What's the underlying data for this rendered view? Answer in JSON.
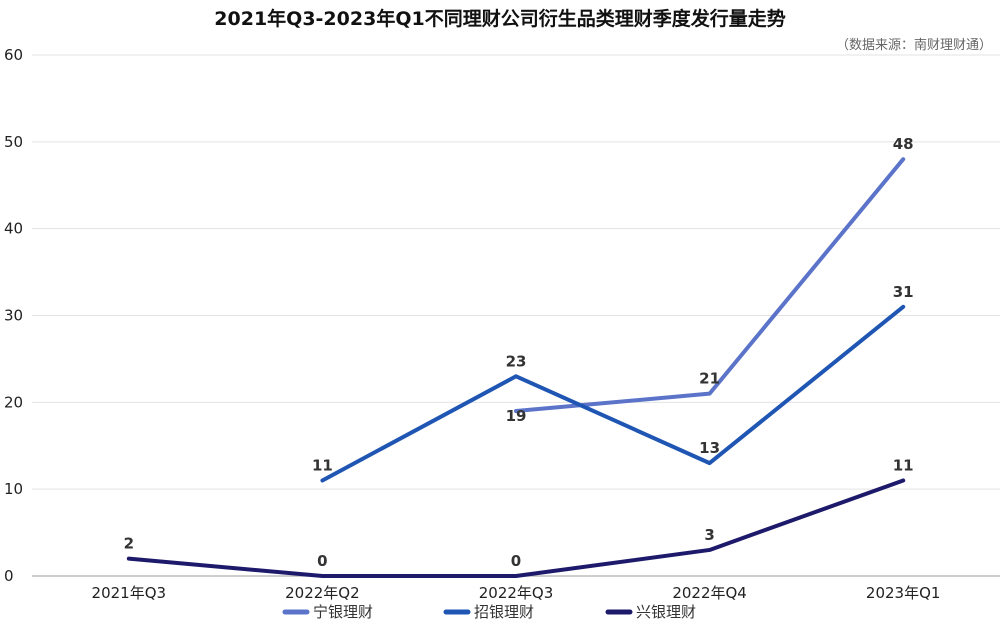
{
  "chart_data": {
    "type": "line",
    "title": "2021年Q3-2023年Q1不同理财公司衍生品类理财季度发行量走势",
    "source_note": "（数据来源：南财理财通）",
    "categories": [
      "2021年Q3",
      "2022年Q2",
      "2022年Q3",
      "2022年Q4",
      "2023年Q1"
    ],
    "ylim": [
      0,
      60
    ],
    "yticks": [
      "0",
      "10",
      "20",
      "30",
      "40",
      "50",
      "60"
    ],
    "grid": true,
    "legend_position": "bottom",
    "series": [
      {
        "name": "宁银理财",
        "color": "#5B74C9",
        "values": [
          null,
          null,
          19,
          21,
          48
        ]
      },
      {
        "name": "招银理财",
        "color": "#1F56B3",
        "values": [
          null,
          11,
          23,
          13,
          31
        ]
      },
      {
        "name": "兴银理财",
        "color": "#1E1A6B",
        "values": [
          2,
          0,
          0,
          3,
          11
        ]
      }
    ]
  }
}
